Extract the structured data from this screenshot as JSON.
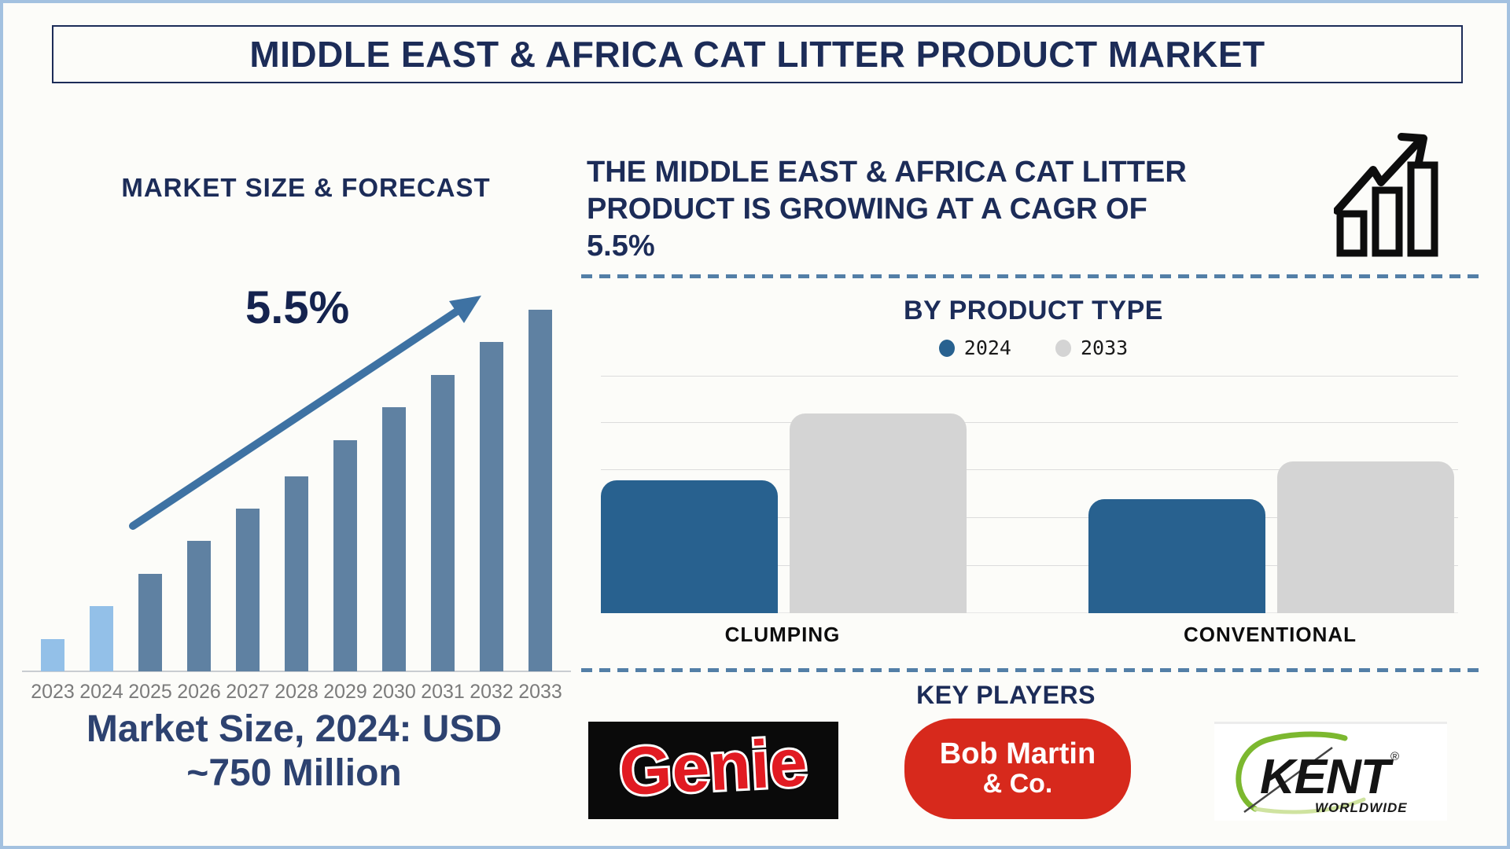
{
  "title": "MIDDLE EAST & AFRICA CAT LITTER PRODUCT MARKET",
  "left_panel": {
    "heading": "MARKET SIZE & FORECAST",
    "cagr_label": "5.5%",
    "caption_line1": "Market Size, 2024: USD",
    "caption_line2": "~750 Million"
  },
  "right_panel": {
    "headline_lines": [
      "THE MIDDLE EAST & AFRICA CAT LITTER",
      "PRODUCT IS GROWING AT A CAGR OF",
      "5.5%"
    ],
    "key_players_heading": "KEY PLAYERS",
    "players": [
      {
        "name": "Genie",
        "logo_text": "Genie"
      },
      {
        "name": "Bob Martin & Co.",
        "logo_line1": "Bob Martin",
        "logo_line2": "& Co."
      },
      {
        "name": "KENT Worldwide",
        "logo_text": "KENT",
        "logo_subtext": "WORLDWIDE",
        "trademark": "®"
      }
    ]
  },
  "chart_data": [
    {
      "type": "bar",
      "title": "MARKET SIZE & FORECAST",
      "categories": [
        "2023",
        "2024",
        "2025",
        "2026",
        "2027",
        "2028",
        "2029",
        "2030",
        "2031",
        "2032",
        "2033"
      ],
      "values_relative_pct": [
        9,
        18,
        27,
        36,
        45,
        54,
        64,
        73,
        82,
        91,
        100
      ],
      "ylabel": "",
      "xlabel": "",
      "axis_values_shown": false,
      "annotation": "5.5% CAGR growth arrow",
      "anchor_value": "2024 = USD ~750 Million",
      "highlight": "2023 and 2024 bars light blue, 2025-2033 steel blue",
      "grid": false
    },
    {
      "type": "bar",
      "title": "BY PRODUCT TYPE",
      "categories": [
        "CLUMPING",
        "CONVENTIONAL"
      ],
      "series": [
        {
          "name": "2024",
          "values": [
            56,
            48
          ]
        },
        {
          "name": "2033",
          "values": [
            84,
            64
          ]
        }
      ],
      "unit": "relative height % (axis unlabeled)",
      "legend_position": "top center",
      "grid": true
    }
  ],
  "colors": {
    "navy": "#1c2c58",
    "frame_blue": "#a3c1e0",
    "bar_light_blue": "#93c0e8",
    "bar_steel_blue": "#5f81a2",
    "arrow_blue": "#3e72a3",
    "series_2024_blue": "#28618f",
    "series_2033_gray": "#d4d4d4",
    "dash_blue": "#537fa7",
    "genie_red": "#e11b22",
    "bobmartin_red": "#d7291c",
    "kent_green": "#7cb82f"
  }
}
